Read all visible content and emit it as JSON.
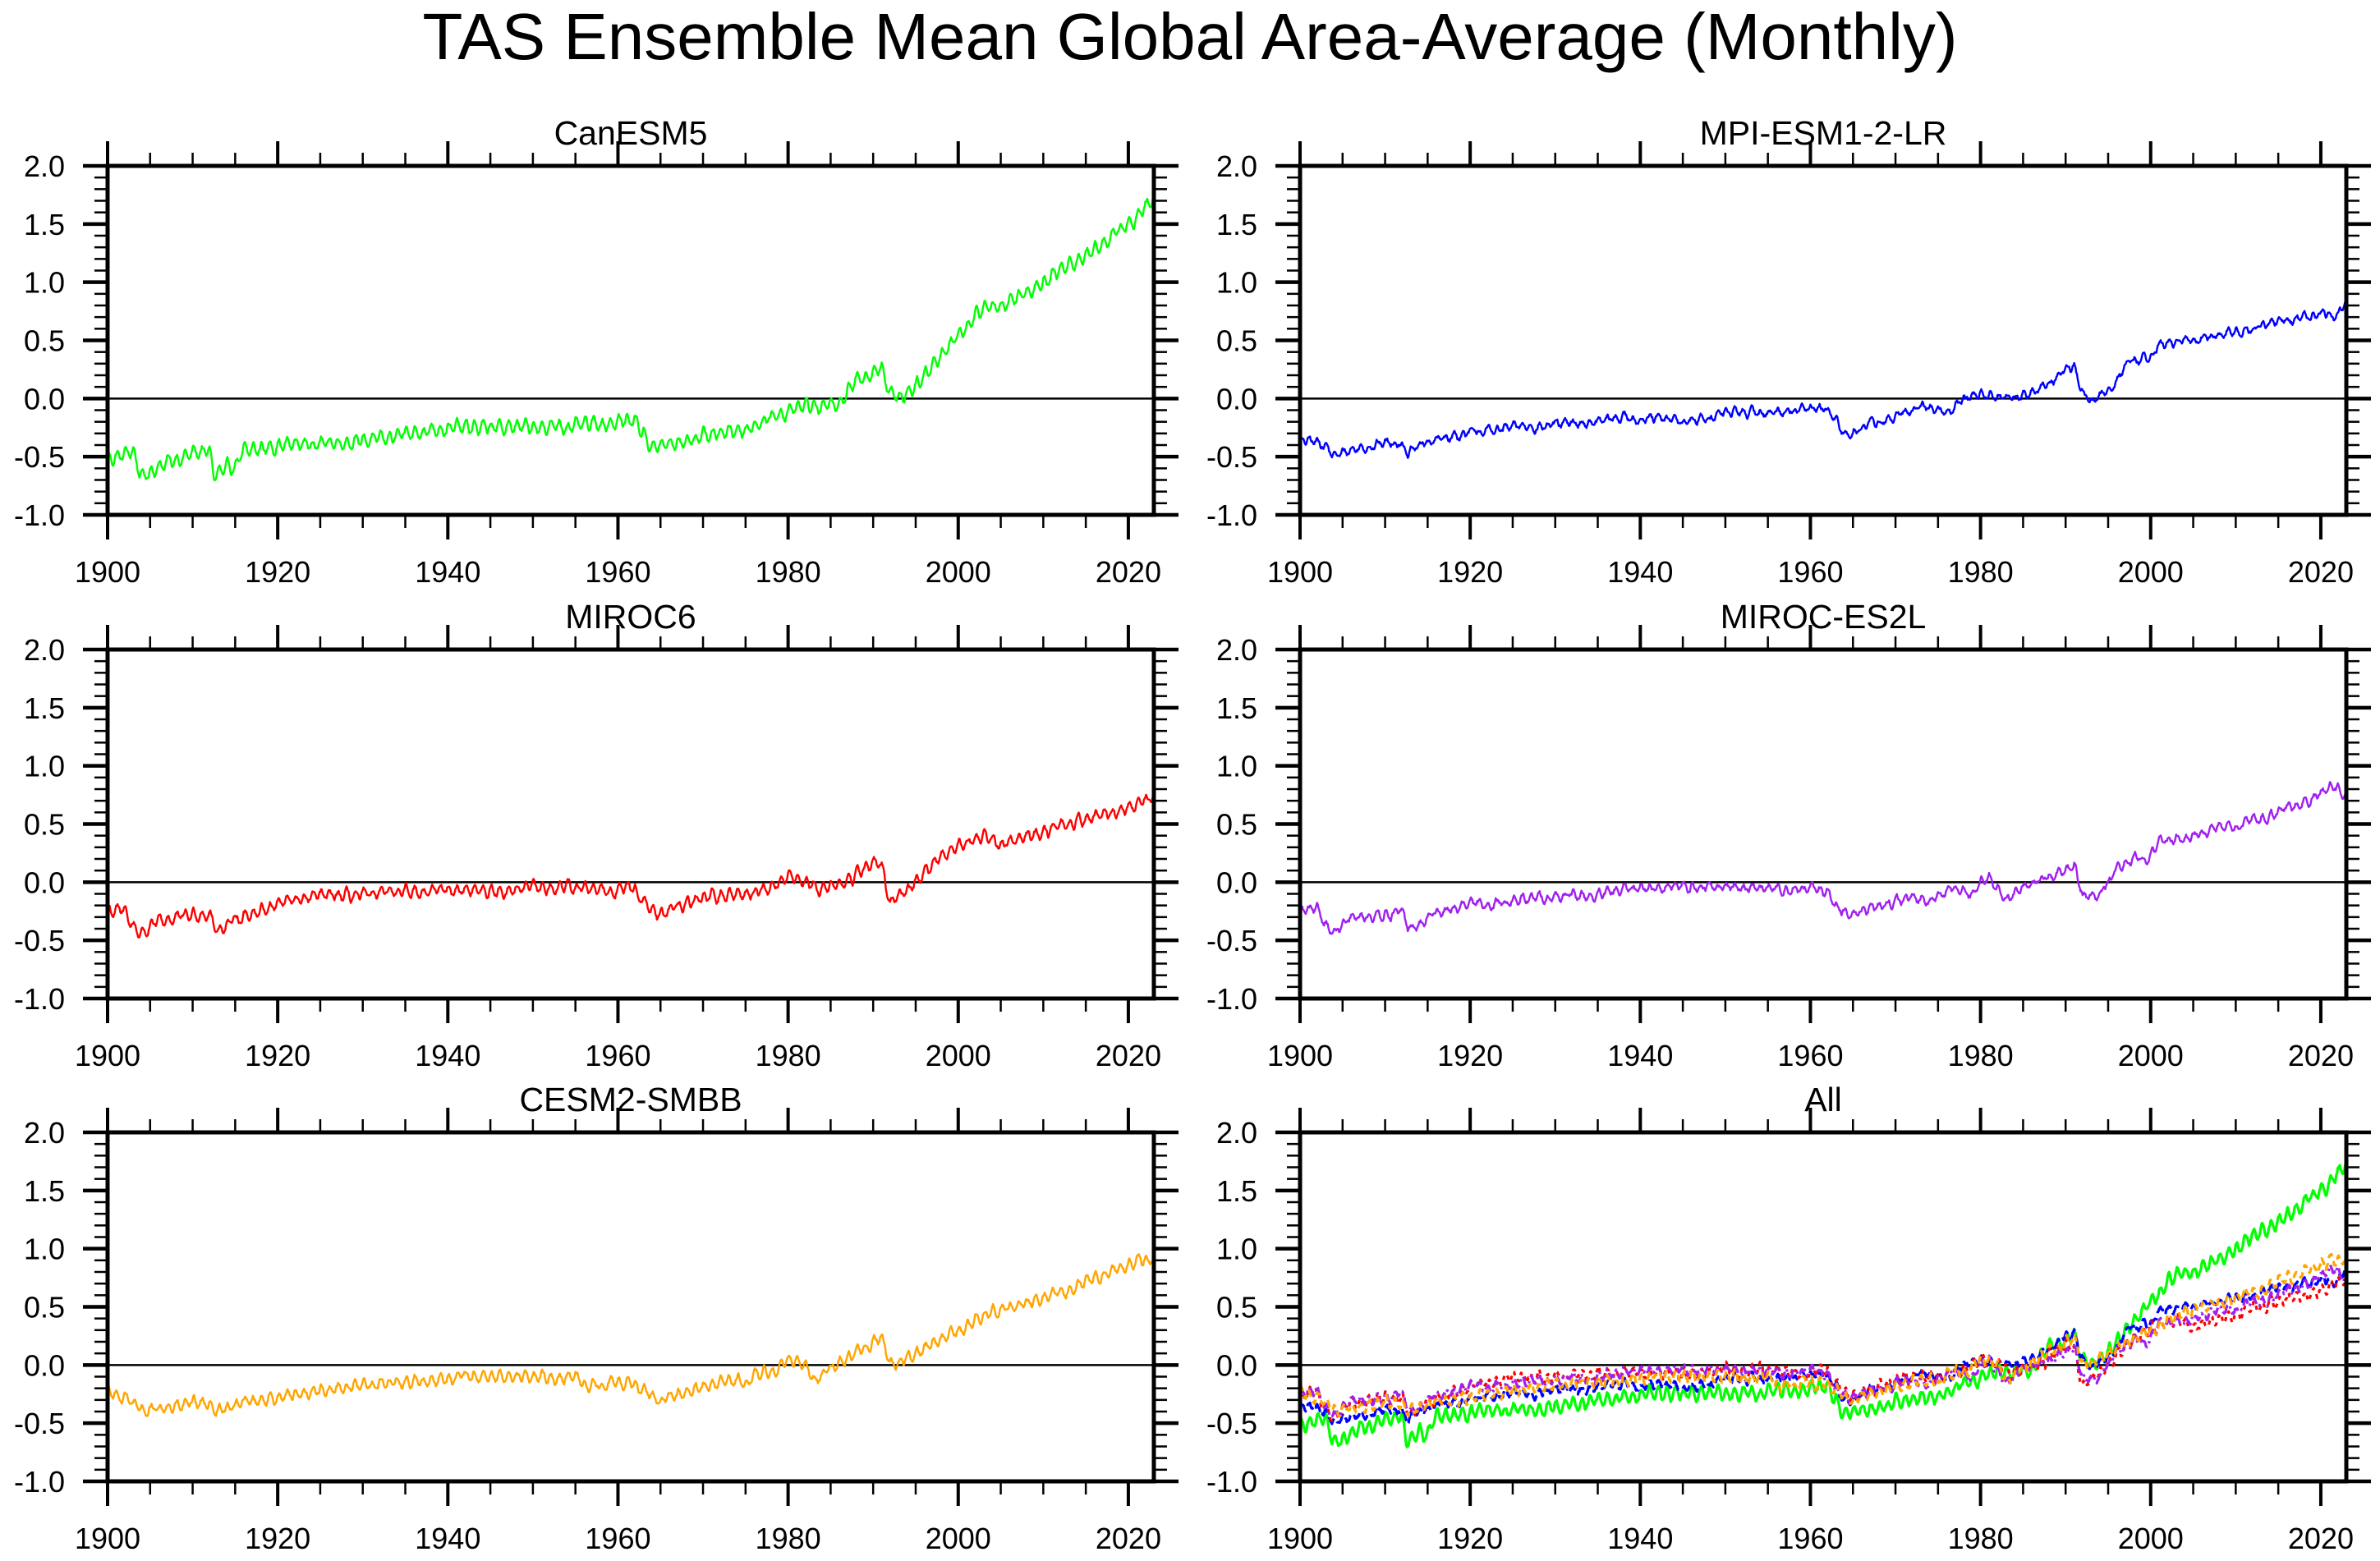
{
  "chart_data": {
    "type": "line",
    "title": "TAS Ensemble Mean Global Area-Average (Monthly)",
    "x_range": [
      1900,
      2023
    ],
    "ylim": [
      -1.0,
      2.0
    ],
    "x_ticks": [
      "1900",
      "1920",
      "1940",
      "1960",
      "1980",
      "2000",
      "2020"
    ],
    "y_ticks": [
      "2.0",
      "1.5",
      "1.0",
      "0.5",
      "0.0",
      "-0.5",
      "-1.0"
    ],
    "grid": false,
    "reference_line": 0.0,
    "panels": [
      {
        "title": "CanESM5",
        "series": [
          {
            "name": "CanESM5",
            "color": "#00FF00",
            "dash": "solid",
            "seasonal_amp": 0.05,
            "anchors": [
              [
                1900,
                -0.52
              ],
              [
                1902,
                -0.48
              ],
              [
                1903,
                -0.45
              ],
              [
                1904,
                -0.68
              ],
              [
                1906,
                -0.58
              ],
              [
                1910,
                -0.47
              ],
              [
                1912,
                -0.45
              ],
              [
                1912.5,
                -0.66
              ],
              [
                1915,
                -0.58
              ],
              [
                1916,
                -0.46
              ],
              [
                1920,
                -0.4
              ],
              [
                1925,
                -0.38
              ],
              [
                1930,
                -0.36
              ],
              [
                1935,
                -0.32
              ],
              [
                1938,
                -0.26
              ],
              [
                1940,
                -0.25
              ],
              [
                1945,
                -0.25
              ],
              [
                1950,
                -0.24
              ],
              [
                1955,
                -0.24
              ],
              [
                1960,
                -0.2
              ],
              [
                1962,
                -0.18
              ],
              [
                1963,
                -0.3
              ],
              [
                1964,
                -0.42
              ],
              [
                1967,
                -0.38
              ],
              [
                1970,
                -0.32
              ],
              [
                1975,
                -0.26
              ],
              [
                1978,
                -0.16
              ],
              [
                1982,
                -0.05
              ],
              [
                1984,
                -0.08
              ],
              [
                1986,
                -0.02
              ],
              [
                1988,
                0.15
              ],
              [
                1990,
                0.24
              ],
              [
                1991,
                0.28
              ],
              [
                1992,
                0.05
              ],
              [
                1993,
                0.0
              ],
              [
                1995,
                0.12
              ],
              [
                1998,
                0.38
              ],
              [
                2000,
                0.55
              ],
              [
                2003,
                0.78
              ],
              [
                2005,
                0.8
              ],
              [
                2008,
                0.92
              ],
              [
                2012,
                1.1
              ],
              [
                2016,
                1.28
              ],
              [
                2019,
                1.45
              ],
              [
                2021,
                1.55
              ],
              [
                2023,
                1.72
              ]
            ]
          }
        ]
      },
      {
        "title": "MPI-ESM1-2-LR",
        "series": [
          {
            "name": "MPI-ESM1-2-LR",
            "color": "#0000FF",
            "dash": "solid",
            "seasonal_amp": 0.025,
            "anchors": [
              [
                1900,
                -0.37
              ],
              [
                1902,
                -0.37
              ],
              [
                1903,
                -0.4
              ],
              [
                1904,
                -0.5
              ],
              [
                1906,
                -0.44
              ],
              [
                1910,
                -0.38
              ],
              [
                1912,
                -0.37
              ],
              [
                1912.6,
                -0.5
              ],
              [
                1914,
                -0.4
              ],
              [
                1918,
                -0.32
              ],
              [
                1922,
                -0.28
              ],
              [
                1926,
                -0.24
              ],
              [
                1930,
                -0.23
              ],
              [
                1935,
                -0.2
              ],
              [
                1938,
                -0.16
              ],
              [
                1942,
                -0.18
              ],
              [
                1946,
                -0.2
              ],
              [
                1950,
                -0.12
              ],
              [
                1955,
                -0.12
              ],
              [
                1960,
                -0.08
              ],
              [
                1962,
                -0.1
              ],
              [
                1963,
                -0.2
              ],
              [
                1964,
                -0.32
              ],
              [
                1966,
                -0.24
              ],
              [
                1970,
                -0.17
              ],
              [
                1973,
                -0.06
              ],
              [
                1976,
                -0.12
              ],
              [
                1978,
                0.0
              ],
              [
                1980,
                0.04
              ],
              [
                1984,
                0.0
              ],
              [
                1986,
                0.05
              ],
              [
                1988,
                0.14
              ],
              [
                1990,
                0.24
              ],
              [
                1991,
                0.28
              ],
              [
                1992,
                0.05
              ],
              [
                1993,
                -0.02
              ],
              [
                1995,
                0.06
              ],
              [
                1997,
                0.28
              ],
              [
                2000,
                0.37
              ],
              [
                2001,
                0.46
              ],
              [
                2005,
                0.5
              ],
              [
                2010,
                0.57
              ],
              [
                2015,
                0.66
              ],
              [
                2020,
                0.72
              ],
              [
                2022,
                0.7
              ],
              [
                2023,
                0.82
              ]
            ]
          }
        ]
      },
      {
        "title": "MIROC6",
        "series": [
          {
            "name": "MIROC6",
            "color": "#FF0000",
            "dash": "solid",
            "seasonal_amp": 0.04,
            "anchors": [
              [
                1900,
                -0.24
              ],
              [
                1902,
                -0.25
              ],
              [
                1903,
                -0.38
              ],
              [
                1904,
                -0.44
              ],
              [
                1906,
                -0.34
              ],
              [
                1910,
                -0.28
              ],
              [
                1912,
                -0.26
              ],
              [
                1912.8,
                -0.42
              ],
              [
                1915,
                -0.32
              ],
              [
                1920,
                -0.18
              ],
              [
                1925,
                -0.12
              ],
              [
                1930,
                -0.12
              ],
              [
                1935,
                -0.08
              ],
              [
                1940,
                -0.06
              ],
              [
                1945,
                -0.08
              ],
              [
                1950,
                -0.05
              ],
              [
                1955,
                -0.05
              ],
              [
                1960,
                -0.05
              ],
              [
                1962,
                -0.06
              ],
              [
                1963,
                -0.18
              ],
              [
                1965,
                -0.3
              ],
              [
                1967,
                -0.2
              ],
              [
                1970,
                -0.13
              ],
              [
                1975,
                -0.1
              ],
              [
                1978,
                -0.04
              ],
              [
                1980,
                0.06
              ],
              [
                1982,
                0.0
              ],
              [
                1984,
                -0.06
              ],
              [
                1987,
                0.0
              ],
              [
                1989,
                0.12
              ],
              [
                1990,
                0.18
              ],
              [
                1991,
                0.12
              ],
              [
                1992,
                -0.16
              ],
              [
                1994,
                -0.06
              ],
              [
                1996,
                0.08
              ],
              [
                1998,
                0.22
              ],
              [
                2000,
                0.32
              ],
              [
                2003,
                0.4
              ],
              [
                2005,
                0.32
              ],
              [
                2008,
                0.42
              ],
              [
                2010,
                0.4
              ],
              [
                2013,
                0.52
              ],
              [
                2017,
                0.58
              ],
              [
                2020,
                0.64
              ],
              [
                2023,
                0.74
              ]
            ]
          }
        ]
      },
      {
        "title": "MIROC-ES2L",
        "series": [
          {
            "name": "MIROC-ES2L",
            "color": "#A020F0",
            "dash": "solid",
            "seasonal_amp": 0.03,
            "anchors": [
              [
                1900,
                -0.24
              ],
              [
                1902,
                -0.25
              ],
              [
                1903,
                -0.35
              ],
              [
                1904,
                -0.44
              ],
              [
                1906,
                -0.32
              ],
              [
                1910,
                -0.27
              ],
              [
                1912,
                -0.26
              ],
              [
                1912.7,
                -0.4
              ],
              [
                1914,
                -0.38
              ],
              [
                1916,
                -0.26
              ],
              [
                1920,
                -0.2
              ],
              [
                1925,
                -0.16
              ],
              [
                1930,
                -0.12
              ],
              [
                1935,
                -0.12
              ],
              [
                1938,
                -0.07
              ],
              [
                1940,
                -0.04
              ],
              [
                1945,
                -0.04
              ],
              [
                1950,
                -0.04
              ],
              [
                1955,
                -0.05
              ],
              [
                1960,
                -0.06
              ],
              [
                1962,
                -0.09
              ],
              [
                1963,
                -0.2
              ],
              [
                1965,
                -0.3
              ],
              [
                1967,
                -0.22
              ],
              [
                1970,
                -0.16
              ],
              [
                1975,
                -0.14
              ],
              [
                1977,
                -0.04
              ],
              [
                1979,
                -0.12
              ],
              [
                1980,
                0.0
              ],
              [
                1981,
                0.05
              ],
              [
                1982,
                -0.05
              ],
              [
                1983,
                -0.16
              ],
              [
                1985,
                -0.04
              ],
              [
                1987,
                0.02
              ],
              [
                1990,
                0.1
              ],
              [
                1991,
                0.16
              ],
              [
                1992,
                -0.12
              ],
              [
                1994,
                -0.1
              ],
              [
                1996,
                0.12
              ],
              [
                1998,
                0.22
              ],
              [
                2000,
                0.22
              ],
              [
                2001,
                0.34
              ],
              [
                2005,
                0.4
              ],
              [
                2010,
                0.48
              ],
              [
                2015,
                0.6
              ],
              [
                2018,
                0.68
              ],
              [
                2021,
                0.82
              ],
              [
                2023,
                0.76
              ]
            ]
          }
        ]
      },
      {
        "title": "CESM2-SMBB",
        "series": [
          {
            "name": "CESM2-SMBB",
            "color": "#FFA500",
            "dash": "solid",
            "seasonal_amp": 0.04,
            "anchors": [
              [
                1900,
                -0.22
              ],
              [
                1902,
                -0.28
              ],
              [
                1904,
                -0.4
              ],
              [
                1906,
                -0.38
              ],
              [
                1910,
                -0.34
              ],
              [
                1912,
                -0.33
              ],
              [
                1913,
                -0.4
              ],
              [
                1916,
                -0.32
              ],
              [
                1920,
                -0.27
              ],
              [
                1925,
                -0.22
              ],
              [
                1930,
                -0.17
              ],
              [
                1935,
                -0.14
              ],
              [
                1940,
                -0.12
              ],
              [
                1945,
                -0.1
              ],
              [
                1950,
                -0.11
              ],
              [
                1955,
                -0.1
              ],
              [
                1956,
                -0.17
              ],
              [
                1960,
                -0.15
              ],
              [
                1962,
                -0.14
              ],
              [
                1963,
                -0.22
              ],
              [
                1965,
                -0.3
              ],
              [
                1968,
                -0.25
              ],
              [
                1970,
                -0.19
              ],
              [
                1975,
                -0.12
              ],
              [
                1978,
                -0.04
              ],
              [
                1980,
                0.02
              ],
              [
                1982,
                0.0
              ],
              [
                1983,
                -0.12
              ],
              [
                1985,
                -0.04
              ],
              [
                1988,
                0.1
              ],
              [
                1990,
                0.2
              ],
              [
                1991,
                0.26
              ],
              [
                1992,
                -0.02
              ],
              [
                1994,
                0.06
              ],
              [
                1997,
                0.18
              ],
              [
                2000,
                0.3
              ],
              [
                2003,
                0.42
              ],
              [
                2007,
                0.52
              ],
              [
                2012,
                0.62
              ],
              [
                2016,
                0.74
              ],
              [
                2020,
                0.86
              ],
              [
                2023,
                0.92
              ]
            ]
          }
        ]
      },
      {
        "title": "All",
        "series": [
          {
            "name": "CanESM5",
            "ref": 0,
            "color": "#00FF00",
            "dash": "solid"
          },
          {
            "name": "MPI-ESM1-2-LR",
            "ref": 1,
            "color": "#0000FF",
            "dash": "long-dash"
          },
          {
            "name": "MIROC6",
            "ref": 2,
            "color": "#FF0000",
            "dash": "dot"
          },
          {
            "name": "MIROC-ES2L",
            "ref": 3,
            "color": "#A020F0",
            "dash": "dash-dot"
          },
          {
            "name": "CESM2-SMBB",
            "ref": 4,
            "color": "#FFA500",
            "dash": "dash"
          }
        ]
      }
    ]
  }
}
